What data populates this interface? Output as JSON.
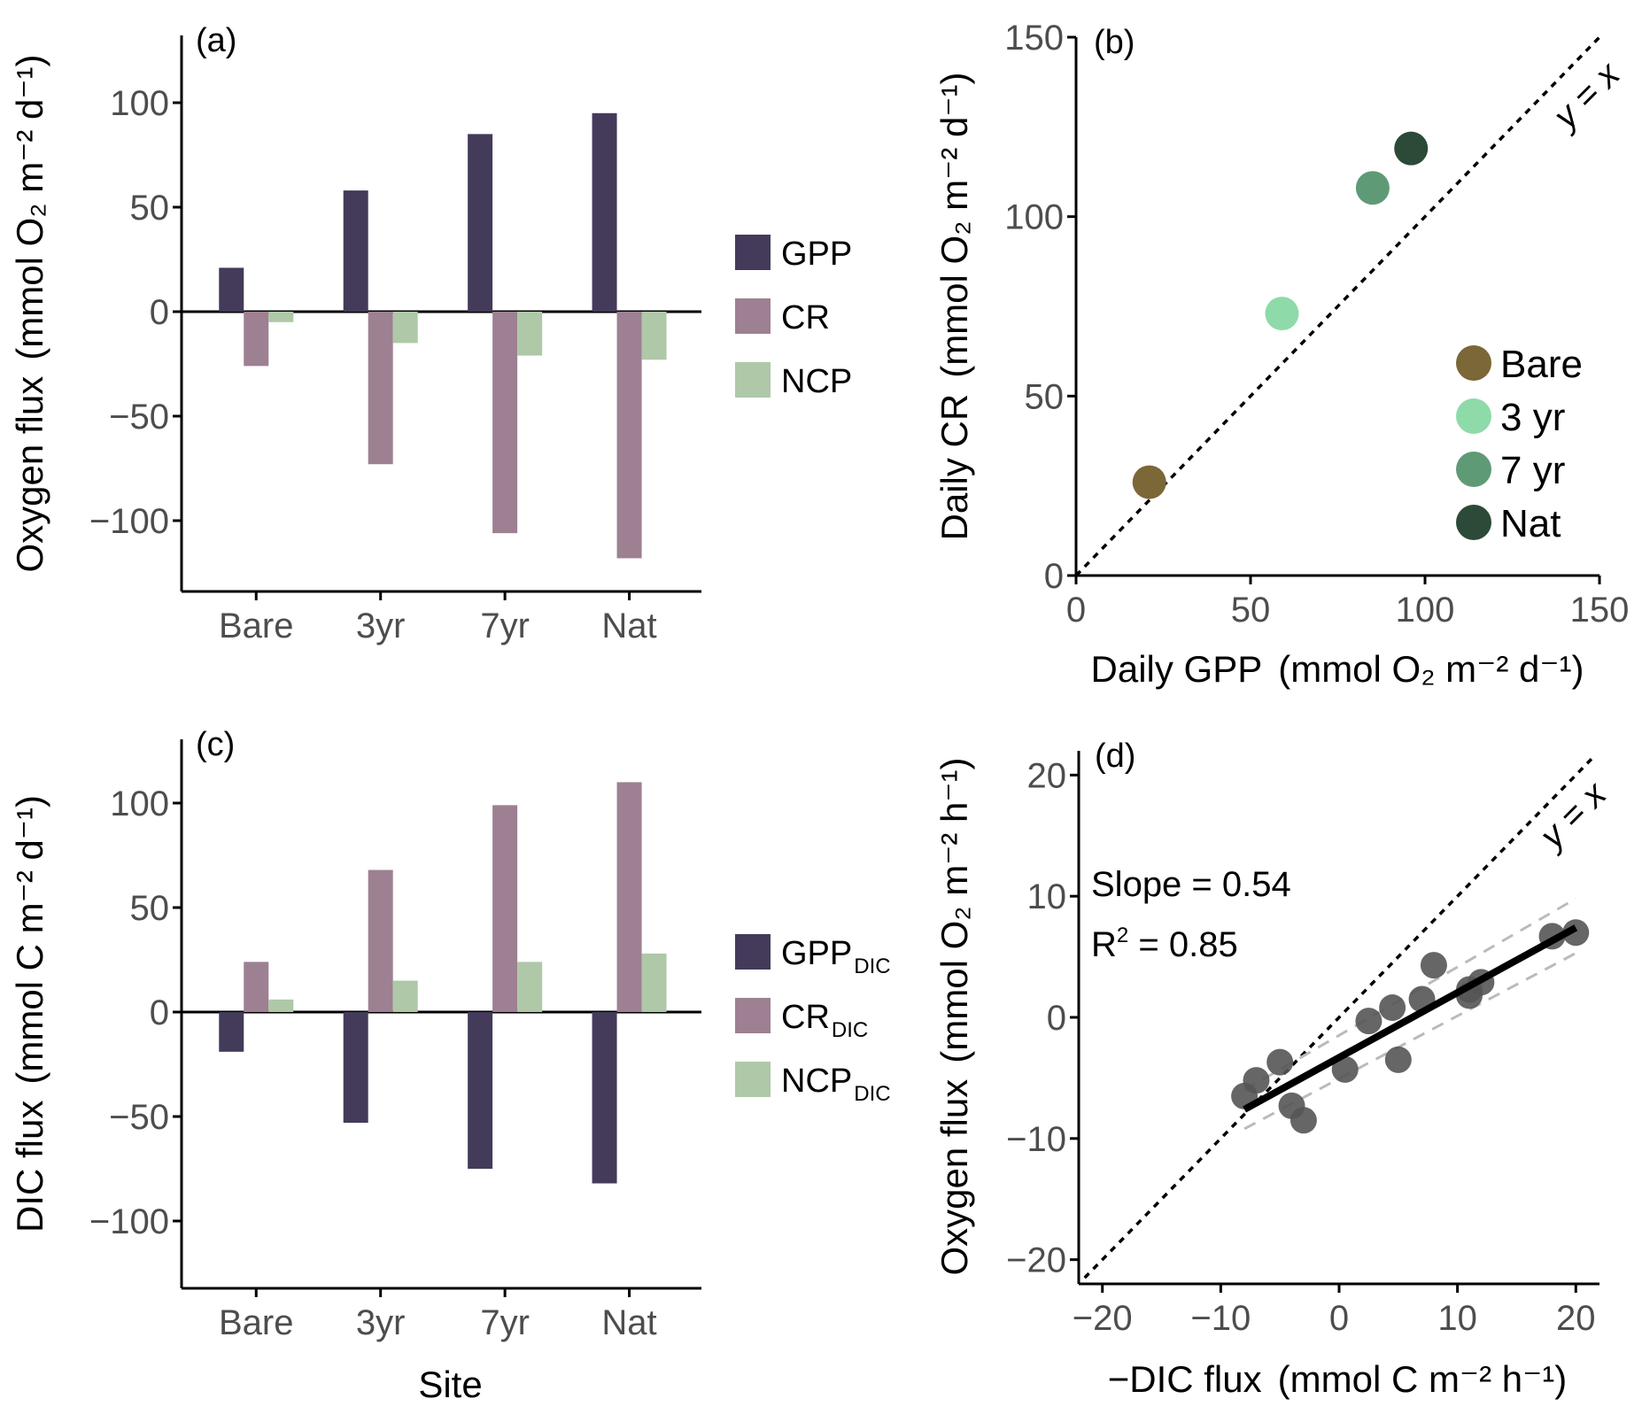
{
  "chart_data": [
    {
      "panel": "(a)",
      "type": "bar",
      "categories": [
        "Bare",
        "3yr",
        "7yr",
        "Nat"
      ],
      "series": [
        {
          "name": "GPP",
          "values": [
            21,
            58,
            85,
            95
          ]
        },
        {
          "name": "CR",
          "values": [
            -26,
            -73,
            -106,
            -118
          ]
        },
        {
          "name": "NCP",
          "values": [
            -5,
            -15,
            -21,
            -23
          ]
        }
      ],
      "ylabel": "Oxygen flux",
      "ylabel_unit": "(mmol O₂ m⁻² d⁻¹)",
      "yticks": [
        "100",
        "50",
        "0",
        "−50",
        "−100"
      ],
      "ylim": [
        -133,
        133
      ],
      "xlabel": "",
      "legend_position": "right",
      "colors": [
        "#443a5a",
        "#9d8092",
        "#aec8a8"
      ]
    },
    {
      "panel": "(b)",
      "type": "scatter",
      "points": [
        {
          "name": "Bare",
          "x": 21,
          "y": 26
        },
        {
          "name": "3 yr",
          "x": 59,
          "y": 73
        },
        {
          "name": "7 yr",
          "x": 85,
          "y": 108
        },
        {
          "name": "Nat",
          "x": 96,
          "y": 119
        }
      ],
      "xlabel": "Daily GPP",
      "xlabel_unit": "(mmol O₂ m⁻² d⁻¹)",
      "ylabel": "Daily CR",
      "ylabel_unit": "(mmol O₂ m⁻² d⁻¹)",
      "xlim": [
        0,
        150
      ],
      "ylim": [
        0,
        150
      ],
      "xticks": [
        "0",
        "50",
        "100",
        "150"
      ],
      "yticks": [
        "0",
        "50",
        "100",
        "150"
      ],
      "reference_line": "y = x",
      "legend_position": "bottom-right",
      "colors": [
        "#7b6737",
        "#8fdaa9",
        "#5f9a76",
        "#2c4a38"
      ]
    },
    {
      "panel": "(c)",
      "type": "bar",
      "categories": [
        "Bare",
        "3yr",
        "7yr",
        "Nat"
      ],
      "series": [
        {
          "name": "GPP",
          "sub": "DIC",
          "values": [
            -19,
            -53,
            -75,
            -82
          ]
        },
        {
          "name": "CR",
          "sub": "DIC",
          "values": [
            24,
            68,
            99,
            110
          ]
        },
        {
          "name": "NCP",
          "sub": "DIC",
          "values": [
            6,
            15,
            24,
            28
          ]
        }
      ],
      "ylabel": "DIC flux",
      "ylabel_unit": "(mmol C m⁻² d⁻¹)",
      "yticks": [
        "100",
        "50",
        "0",
        "−50",
        "−100"
      ],
      "ylim": [
        -133,
        133
      ],
      "xlabel": "Site",
      "legend_position": "right",
      "colors": [
        "#443a5a",
        "#9d8092",
        "#aec8a8"
      ]
    },
    {
      "panel": "(d)",
      "type": "scatter",
      "x": [
        -8,
        -7,
        -5,
        -4,
        -3,
        0.5,
        2.5,
        4.5,
        5,
        7,
        8,
        11,
        11,
        12,
        18,
        20
      ],
      "y": [
        -6.5,
        -5.2,
        -3.7,
        -7.3,
        -8.5,
        -4.3,
        -0.3,
        0.8,
        -3.5,
        1.5,
        4.3,
        2.3,
        1.8,
        2.9,
        6.7,
        7.0
      ],
      "fit": {
        "slope": 0.54,
        "r2": 0.85,
        "x_range": [
          -8,
          20
        ],
        "y_at_range": [
          -7.6,
          7.4
        ]
      },
      "slope_text": "Slope = 0.54",
      "r2_prefix": "R",
      "r2_suffix": " = 0.85",
      "xlabel": "−DIC flux",
      "xlabel_unit": "(mmol C m⁻² h⁻¹)",
      "ylabel": "Oxygen flux",
      "ylabel_unit": "(mmol O₂ m⁻² h⁻¹)",
      "xlim": [
        -22,
        22
      ],
      "ylim": [
        -22,
        22
      ],
      "xticks": [
        "−20",
        "−10",
        "0",
        "10",
        "20"
      ],
      "yticks": [
        "−20",
        "−10",
        "0",
        "10",
        "20"
      ],
      "reference_line": "y = x",
      "colors": [
        "#555555",
        "#000000",
        "#bbbbbb"
      ]
    }
  ]
}
